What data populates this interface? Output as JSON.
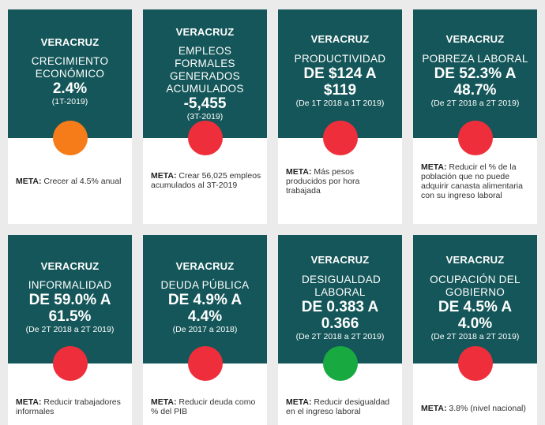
{
  "colors": {
    "header_bg": "#145659",
    "orange": "#f57c19",
    "red": "#ee2f3b",
    "green": "#18a940",
    "background": "#ebebeb"
  },
  "goal_label": "META:",
  "cards": [
    {
      "region": "VERACRUZ",
      "name": "CRECIMIENTO ECONÓMICO",
      "value": "2.4%",
      "period": "(1T-2019)",
      "status": "orange",
      "goal": "Crecer al 4.5% anual"
    },
    {
      "region": "VERACRUZ",
      "name": "EMPLEOS FORMALES GENERADOS ACUMULADOS",
      "value": "-5,455",
      "period": "(3T-2019)",
      "status": "red",
      "goal": "Crear 56,025 empleos acumulados al 3T-2019"
    },
    {
      "region": "VERACRUZ",
      "name": "PRODUCTIVIDAD",
      "value": "DE $124 A $119",
      "period": "(De 1T 2018 a 1T 2019)",
      "status": "red",
      "goal": "Más pesos producidos por hora trabajada"
    },
    {
      "region": "VERACRUZ",
      "name": "POBREZA LABORAL",
      "value": "DE 52.3% A 48.7%",
      "period": "(De 2T 2018 a 2T 2019)",
      "status": "red",
      "goal": "Reducir el % de la población que no puede adquirir canasta alimentaria con su ingreso laboral"
    },
    {
      "region": "VERACRUZ",
      "name": "INFORMALIDAD",
      "value": "DE 59.0% A 61.5%",
      "period": "(De 2T 2018 a 2T 2019)",
      "status": "red",
      "goal": "Reducir trabajadores informales"
    },
    {
      "region": "VERACRUZ",
      "name": "DEUDA PÚBLICA",
      "value": "DE 4.9% A 4.4%",
      "period": "(De 2017 a 2018)",
      "status": "red",
      "goal": "Reducir deuda como % del PIB"
    },
    {
      "region": "VERACRUZ",
      "name": "DESIGUALDAD LABORAL",
      "value": "DE 0.383 A 0.366",
      "period": "(De 2T 2018 a 2T 2019)",
      "status": "green",
      "goal": "Reducir desigualdad en el ingreso laboral"
    },
    {
      "region": "VERACRUZ",
      "name": "OCUPACIÓN DEL GOBIERNO",
      "value": "DE 4.5% A 4.0%",
      "period": "(De 2T 2018 a 2T 2019)",
      "status": "red",
      "goal": "3.8% (nivel nacional)"
    }
  ]
}
